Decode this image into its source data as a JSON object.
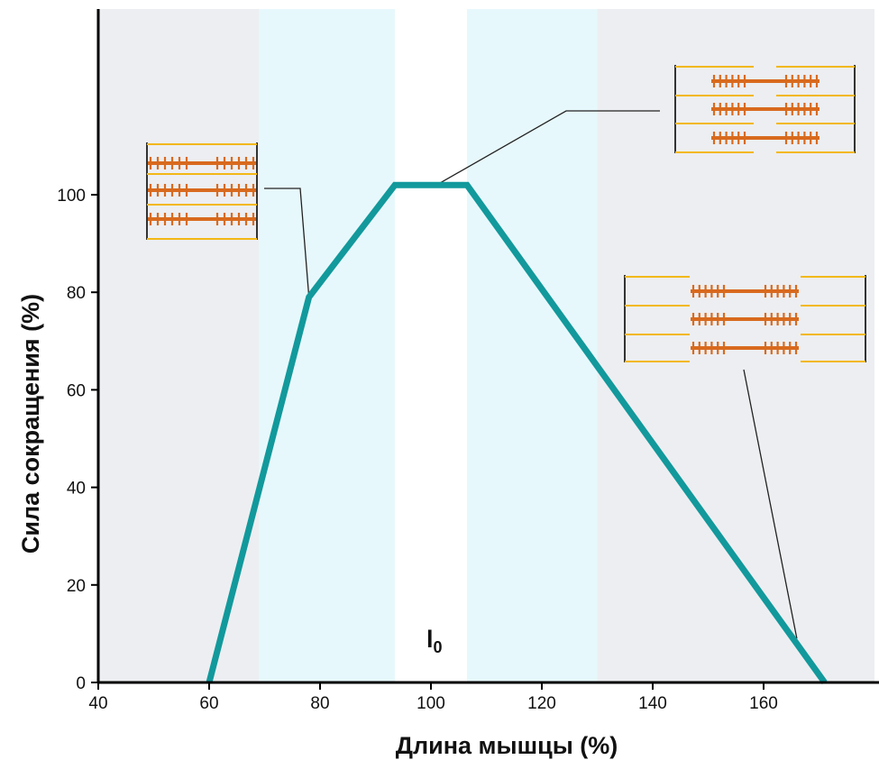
{
  "chart_data": {
    "type": "line",
    "xlabel": "Длина мышцы (%)",
    "ylabel": "Сила сокращения  (%)",
    "xlim": [
      40,
      180
    ],
    "ylim": [
      0,
      130
    ],
    "x_ticks": [
      40,
      60,
      80,
      100,
      120,
      140,
      160
    ],
    "y_ticks": [
      0,
      20,
      40,
      60,
      80,
      100
    ],
    "series": [
      {
        "x": [
          60,
          78,
          93.5,
          106.5,
          171
        ],
        "y": [
          0,
          79,
          102,
          102,
          0
        ],
        "color": "#12999c"
      }
    ],
    "shaded_regions": [
      {
        "x": [
          40,
          69
        ],
        "color": "#edeef1"
      },
      {
        "x": [
          69,
          93.5
        ],
        "color": "#e7f8fc"
      },
      {
        "x": [
          93.5,
          106.5
        ],
        "color": "#ffffff"
      },
      {
        "x": [
          106.5,
          130
        ],
        "color": "#e7f8fc"
      },
      {
        "x": [
          130,
          180
        ],
        "color": "#edeef1"
      }
    ],
    "annotation": {
      "text": "l",
      "subscript": "0",
      "x": 100
    },
    "insets": [
      {
        "name": "sarcomere-short",
        "point": [
          78,
          79
        ]
      },
      {
        "name": "sarcomere-optimal",
        "point": [
          101,
          102
        ]
      },
      {
        "name": "sarcomere-stretched",
        "point": [
          166,
          9
        ]
      }
    ],
    "colors": {
      "line": "#12999c",
      "actin": "#f2b816",
      "myosin": "#d86a1e",
      "axis": "#000000"
    }
  }
}
